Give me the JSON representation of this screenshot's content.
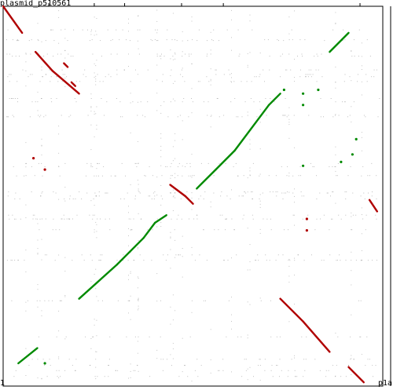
{
  "chart_data": {
    "type": "scatter",
    "title": "plasmid_p510561",
    "x_axis_start_label": "1",
    "x_axis_end_label": "p1a",
    "xlim": [
      0,
      1
    ],
    "ylim": [
      0,
      1
    ],
    "colors": {
      "forward": "#008a00",
      "reverse": "#b00000",
      "noise": "#8a8a8a",
      "frame": "#000000"
    },
    "series": [
      {
        "orientation": "reverse",
        "segments": [
          [
            [
              0.0,
              1.0
            ],
            [
              0.05,
              0.93
            ]
          ],
          [
            [
              0.085,
              0.88
            ],
            [
              0.13,
              0.83
            ]
          ],
          [
            [
              0.13,
              0.83
            ],
            [
              0.2,
              0.77
            ]
          ],
          [
            [
              0.16,
              0.85
            ],
            [
              0.17,
              0.84
            ]
          ],
          [
            [
              0.18,
              0.8
            ],
            [
              0.19,
              0.79
            ]
          ],
          [
            [
              0.44,
              0.53
            ],
            [
              0.48,
              0.5
            ]
          ],
          [
            [
              0.48,
              0.5
            ],
            [
              0.5,
              0.48
            ]
          ],
          [
            [
              0.73,
              0.23
            ],
            [
              0.79,
              0.17
            ]
          ],
          [
            [
              0.79,
              0.17
            ],
            [
              0.86,
              0.09
            ]
          ],
          [
            [
              0.91,
              0.05
            ],
            [
              0.95,
              0.01
            ]
          ],
          [
            [
              0.965,
              0.49
            ],
            [
              0.985,
              0.46
            ]
          ]
        ],
        "dots": [
          [
            0.08,
            0.6
          ],
          [
            0.11,
            0.57
          ],
          [
            0.8,
            0.44
          ],
          [
            0.8,
            0.41
          ]
        ]
      },
      {
        "orientation": "forward",
        "segments": [
          [
            [
              0.86,
              0.88
            ],
            [
              0.91,
              0.93
            ]
          ],
          [
            [
              0.2,
              0.23
            ],
            [
              0.3,
              0.32
            ]
          ],
          [
            [
              0.3,
              0.32
            ],
            [
              0.37,
              0.39
            ]
          ],
          [
            [
              0.37,
              0.39
            ],
            [
              0.4,
              0.43
            ]
          ],
          [
            [
              0.4,
              0.43
            ],
            [
              0.43,
              0.45
            ]
          ],
          [
            [
              0.51,
              0.52
            ],
            [
              0.56,
              0.57
            ]
          ],
          [
            [
              0.56,
              0.57
            ],
            [
              0.61,
              0.62
            ]
          ],
          [
            [
              0.61,
              0.62
            ],
            [
              0.7,
              0.74
            ]
          ],
          [
            [
              0.7,
              0.74
            ],
            [
              0.73,
              0.77
            ]
          ],
          [
            [
              0.04,
              0.06
            ],
            [
              0.09,
              0.1
            ]
          ]
        ],
        "dots": [
          [
            0.79,
            0.77
          ],
          [
            0.79,
            0.74
          ],
          [
            0.83,
            0.78
          ],
          [
            0.74,
            0.78
          ],
          [
            0.89,
            0.59
          ],
          [
            0.92,
            0.61
          ],
          [
            0.93,
            0.65
          ],
          [
            0.79,
            0.58
          ],
          [
            0.11,
            0.06
          ]
        ]
      }
    ]
  }
}
